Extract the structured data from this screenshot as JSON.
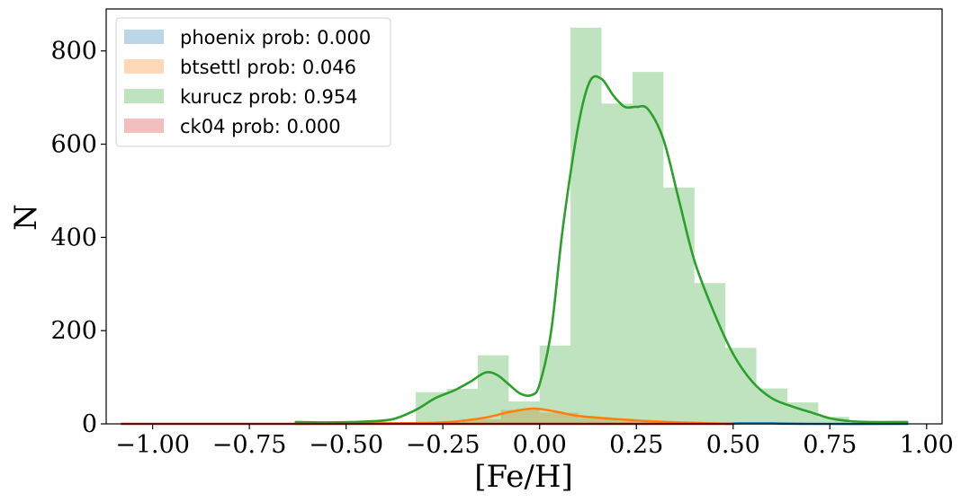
{
  "chart_data": {
    "type": "bar",
    "xlabel": "[Fe/H]",
    "ylabel": "N",
    "xlim": [
      -1.12,
      1.04
    ],
    "ylim": [
      0,
      890
    ],
    "xticks": [
      -1.0,
      -0.75,
      -0.5,
      -0.25,
      0.0,
      0.25,
      0.5,
      0.75,
      1.0
    ],
    "xtick_labels": [
      "−1.00",
      "−0.75",
      "−0.50",
      "−0.25",
      "0.00",
      "0.25",
      "0.50",
      "0.75",
      "1.00"
    ],
    "yticks": [
      0,
      200,
      400,
      600,
      800
    ],
    "ytick_labels": [
      "0",
      "200",
      "400",
      "600",
      "800"
    ],
    "grid": false,
    "legend_position": "top-left",
    "series": [
      {
        "name": "phoenix prob: 0.000",
        "color": "#1f77b4",
        "bins": [],
        "kde": [
          [
            0.48,
            0
          ],
          [
            0.52,
            1
          ],
          [
            0.6,
            1
          ],
          [
            0.7,
            0
          ],
          [
            0.95,
            0
          ]
        ]
      },
      {
        "name": "btsettl prob: 0.046",
        "color": "#ff7f0e",
        "bins": [
          {
            "x0": -0.3,
            "x1": -0.2,
            "y": 3
          },
          {
            "x0": -0.2,
            "x1": -0.1,
            "y": 10
          },
          {
            "x0": -0.1,
            "x1": 0.0,
            "y": 30
          },
          {
            "x0": 0.0,
            "x1": 0.1,
            "y": 24
          },
          {
            "x0": 0.1,
            "x1": 0.2,
            "y": 12
          },
          {
            "x0": 0.2,
            "x1": 0.3,
            "y": 6
          },
          {
            "x0": 0.3,
            "x1": 0.4,
            "y": 3
          }
        ],
        "kde": [
          [
            -0.63,
            0
          ],
          [
            -0.4,
            1
          ],
          [
            -0.25,
            3
          ],
          [
            -0.15,
            12
          ],
          [
            -0.08,
            25
          ],
          [
            -0.03,
            32
          ],
          [
            0.0,
            32
          ],
          [
            0.05,
            25
          ],
          [
            0.1,
            17
          ],
          [
            0.2,
            10
          ],
          [
            0.3,
            5
          ],
          [
            0.4,
            2
          ],
          [
            0.5,
            0
          ]
        ]
      },
      {
        "name": "kurucz prob: 0.954",
        "color": "#2ca02c",
        "bins": [
          {
            "x0": -0.63,
            "x1": -0.59,
            "y": 4
          },
          {
            "x0": -0.32,
            "x1": -0.24,
            "y": 68
          },
          {
            "x0": -0.24,
            "x1": -0.16,
            "y": 75
          },
          {
            "x0": -0.16,
            "x1": -0.08,
            "y": 147
          },
          {
            "x0": -0.08,
            "x1": 0.0,
            "y": 48
          },
          {
            "x0": 0.0,
            "x1": 0.08,
            "y": 168
          },
          {
            "x0": 0.08,
            "x1": 0.16,
            "y": 850
          },
          {
            "x0": 0.16,
            "x1": 0.24,
            "y": 687
          },
          {
            "x0": 0.24,
            "x1": 0.32,
            "y": 755
          },
          {
            "x0": 0.32,
            "x1": 0.4,
            "y": 507
          },
          {
            "x0": 0.4,
            "x1": 0.48,
            "y": 302
          },
          {
            "x0": 0.48,
            "x1": 0.56,
            "y": 163
          },
          {
            "x0": 0.56,
            "x1": 0.64,
            "y": 76
          },
          {
            "x0": 0.64,
            "x1": 0.72,
            "y": 46
          },
          {
            "x0": 0.72,
            "x1": 0.8,
            "y": 15
          }
        ],
        "kde": [
          [
            -0.63,
            4
          ],
          [
            -0.55,
            3
          ],
          [
            -0.45,
            5
          ],
          [
            -0.38,
            10
          ],
          [
            -0.32,
            30
          ],
          [
            -0.27,
            55
          ],
          [
            -0.22,
            72
          ],
          [
            -0.18,
            90
          ],
          [
            -0.14,
            110
          ],
          [
            -0.11,
            105
          ],
          [
            -0.08,
            85
          ],
          [
            -0.05,
            65
          ],
          [
            -0.02,
            62
          ],
          [
            0.0,
            85
          ],
          [
            0.03,
            200
          ],
          [
            0.06,
            420
          ],
          [
            0.1,
            640
          ],
          [
            0.13,
            735
          ],
          [
            0.16,
            740
          ],
          [
            0.19,
            705
          ],
          [
            0.22,
            680
          ],
          [
            0.25,
            680
          ],
          [
            0.28,
            675
          ],
          [
            0.32,
            610
          ],
          [
            0.36,
            480
          ],
          [
            0.4,
            350
          ],
          [
            0.45,
            240
          ],
          [
            0.5,
            150
          ],
          [
            0.55,
            90
          ],
          [
            0.6,
            55
          ],
          [
            0.65,
            38
          ],
          [
            0.7,
            25
          ],
          [
            0.75,
            12
          ],
          [
            0.8,
            6
          ],
          [
            0.85,
            4
          ],
          [
            0.95,
            4
          ]
        ]
      },
      {
        "name": "ck04 prob: 0.000",
        "color": "#d62728",
        "bins": [],
        "kde": [
          [
            -1.08,
            0
          ],
          [
            -0.5,
            0
          ],
          [
            -0.2,
            0
          ],
          [
            0.2,
            0
          ],
          [
            0.5,
            0
          ]
        ]
      }
    ]
  }
}
